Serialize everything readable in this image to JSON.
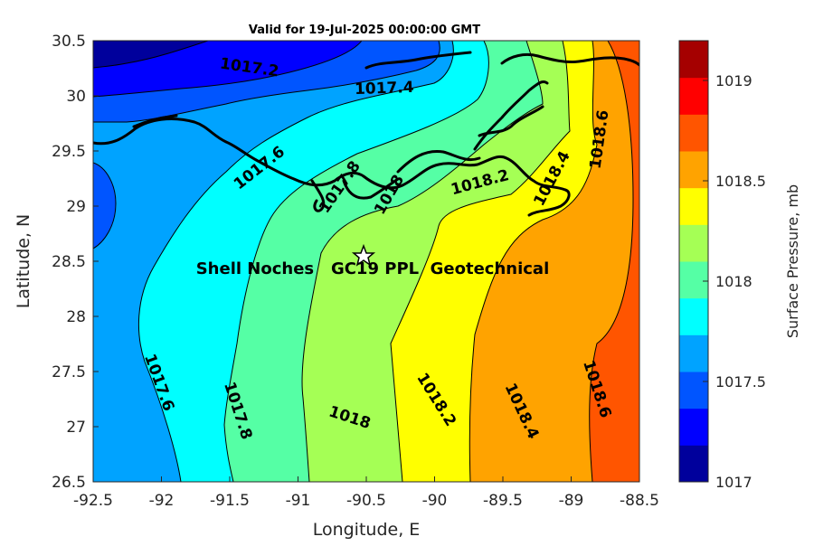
{
  "title": "Valid for 19-Jul-2025 00:00:00 GMT",
  "site_label": "Shell Noches   GC19 PPL  Geotechnical",
  "site_marker": "star-marker",
  "axes": {
    "xlabel": "Longitude, E",
    "ylabel": "Latitude, N",
    "xticks": [
      "-92.5",
      "-92",
      "-91.5",
      "-91",
      "-90.5",
      "-90",
      "-89.5",
      "-89",
      "-88.5"
    ],
    "yticks": [
      "30.5",
      "30",
      "29.5",
      "29",
      "28.5",
      "28",
      "27.5",
      "27",
      "26.5"
    ]
  },
  "colorbar": {
    "label": "Surface Pressure, mb",
    "ticks": [
      "1019",
      "1018.5",
      "1018",
      "1017.5",
      "1017"
    ],
    "colors": [
      "#00009c",
      "#0000ff",
      "#0055ff",
      "#00a3ff",
      "#00ffff",
      "#55ffa5",
      "#a5ff55",
      "#ffff00",
      "#ffa300",
      "#ff5500",
      "#ff0000",
      "#a50000"
    ]
  },
  "contour_labels": [
    {
      "text": "1017.2"
    },
    {
      "text": "1017.4"
    },
    {
      "text": "1017.6"
    },
    {
      "text": "1017.8"
    },
    {
      "text": "1018"
    },
    {
      "text": "1018.2"
    },
    {
      "text": "1018.4"
    },
    {
      "text": "1018.6"
    },
    {
      "text": "1017.6"
    },
    {
      "text": "1017.8"
    },
    {
      "text": "1018"
    },
    {
      "text": "1018.2"
    },
    {
      "text": "1018.4"
    },
    {
      "text": "1018.6"
    }
  ],
  "chart_data": {
    "type": "heatmap",
    "title": "Valid for 19-Jul-2025 00:00:00 GMT",
    "xlabel": "Longitude, E",
    "ylabel": "Latitude, N",
    "xlim": [
      -92.5,
      -88.5
    ],
    "ylim": [
      26.5,
      30.5
    ],
    "colorbar_range": [
      1017,
      1019.2
    ],
    "colorbar_label": "Surface Pressure, mb",
    "contour_levels": [
      1017.2,
      1017.4,
      1017.6,
      1017.8,
      1018,
      1018.2,
      1018.4,
      1018.6
    ],
    "site": {
      "lon": -90.53,
      "lat": 28.55
    }
  }
}
